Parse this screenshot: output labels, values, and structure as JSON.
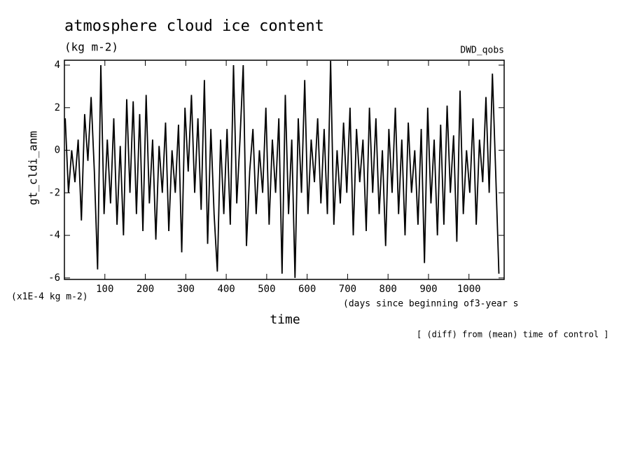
{
  "chart_data": {
    "type": "line",
    "title": "atmosphere cloud ice content",
    "subtitle": "(kg m-2)",
    "annotation_right": "DWD_qobs",
    "y_label": "gt_cldi_anm",
    "y_unit": "(x1E-4 kg m-2)",
    "x_unit": "(days since beginning of3-year s",
    "x_label": "time",
    "footnote": "[ (diff) from (mean) time of control ]",
    "xlim": [
      0,
      1087
    ],
    "ylim": [
      -6.07,
      4.23
    ],
    "xticks": [
      100,
      200,
      300,
      400,
      500,
      600,
      700,
      800,
      900,
      1000
    ],
    "yticks": [
      -6,
      -4,
      -2,
      0,
      2,
      4
    ],
    "x": [
      2,
      10,
      18,
      26,
      34,
      42,
      50,
      58,
      66,
      74,
      82,
      90,
      98,
      106,
      114,
      122,
      130,
      138,
      146,
      154,
      162,
      170,
      178,
      186,
      194,
      202,
      210,
      218,
      226,
      234,
      242,
      250,
      258,
      266,
      274,
      282,
      290,
      298,
      306,
      314,
      322,
      330,
      338,
      346,
      354,
      362,
      370,
      378,
      386,
      394,
      402,
      410,
      418,
      426,
      434,
      442,
      450,
      458,
      466,
      474,
      482,
      490,
      498,
      506,
      514,
      522,
      530,
      538,
      546,
      554,
      562,
      570,
      578,
      586,
      594,
      602,
      610,
      618,
      626,
      634,
      642,
      650,
      658,
      666,
      674,
      682,
      690,
      698,
      706,
      714,
      722,
      730,
      738,
      746,
      754,
      762,
      770,
      778,
      786,
      794,
      802,
      810,
      818,
      826,
      834,
      842,
      850,
      858,
      866,
      874,
      882,
      890,
      898,
      906,
      914,
      922,
      930,
      938,
      946,
      954,
      962,
      970,
      978,
      986,
      994,
      1002,
      1010,
      1018,
      1026,
      1034,
      1042,
      1050,
      1058,
      1066,
      1074
    ],
    "series": [
      {
        "color": "#000000",
        "values": [
          1.5,
          -2,
          0,
          -1.5,
          0.5,
          -3.3,
          1.7,
          -0.5,
          2.5,
          -1,
          -5.6,
          4,
          -3,
          0.5,
          -2.5,
          1.5,
          -3.5,
          0.2,
          -4,
          2.4,
          -2,
          2.3,
          -3,
          1.7,
          -3.8,
          2.6,
          -2.5,
          0.5,
          -4.2,
          0.2,
          -2,
          1.3,
          -3.8,
          0,
          -2,
          1.2,
          -4.8,
          2,
          -1,
          2.6,
          -2,
          1.5,
          -2.8,
          3.3,
          -4.4,
          1,
          -3,
          -5.7,
          0.5,
          -3,
          1,
          -3.5,
          4,
          -2.5,
          0.5,
          4,
          -4.5,
          -1,
          1,
          -3,
          0,
          -2,
          2,
          -3.5,
          0.5,
          -2,
          1.5,
          -5.8,
          2.6,
          -3,
          0.5,
          -6,
          1.5,
          -2,
          3.3,
          -3,
          0.5,
          -1.5,
          1.5,
          -2.5,
          1,
          -3,
          4.2,
          -3.5,
          0,
          -2.5,
          1.3,
          -2,
          2,
          -4,
          1,
          -1.5,
          0.5,
          -3.8,
          2,
          -2,
          1.5,
          -3,
          0,
          -4.5,
          1,
          -2,
          2,
          -3,
          0.5,
          -4,
          1.3,
          -2,
          0,
          -3.5,
          1,
          -5.3,
          2,
          -2.5,
          0.5,
          -4,
          1.2,
          -3.5,
          2.1,
          -2,
          0.7,
          -4.3,
          2.8,
          -3,
          0,
          -2,
          1.5,
          -3.5,
          0.5,
          -1.5,
          2.5,
          -2,
          3.6,
          -1,
          -5.8
        ]
      }
    ]
  }
}
